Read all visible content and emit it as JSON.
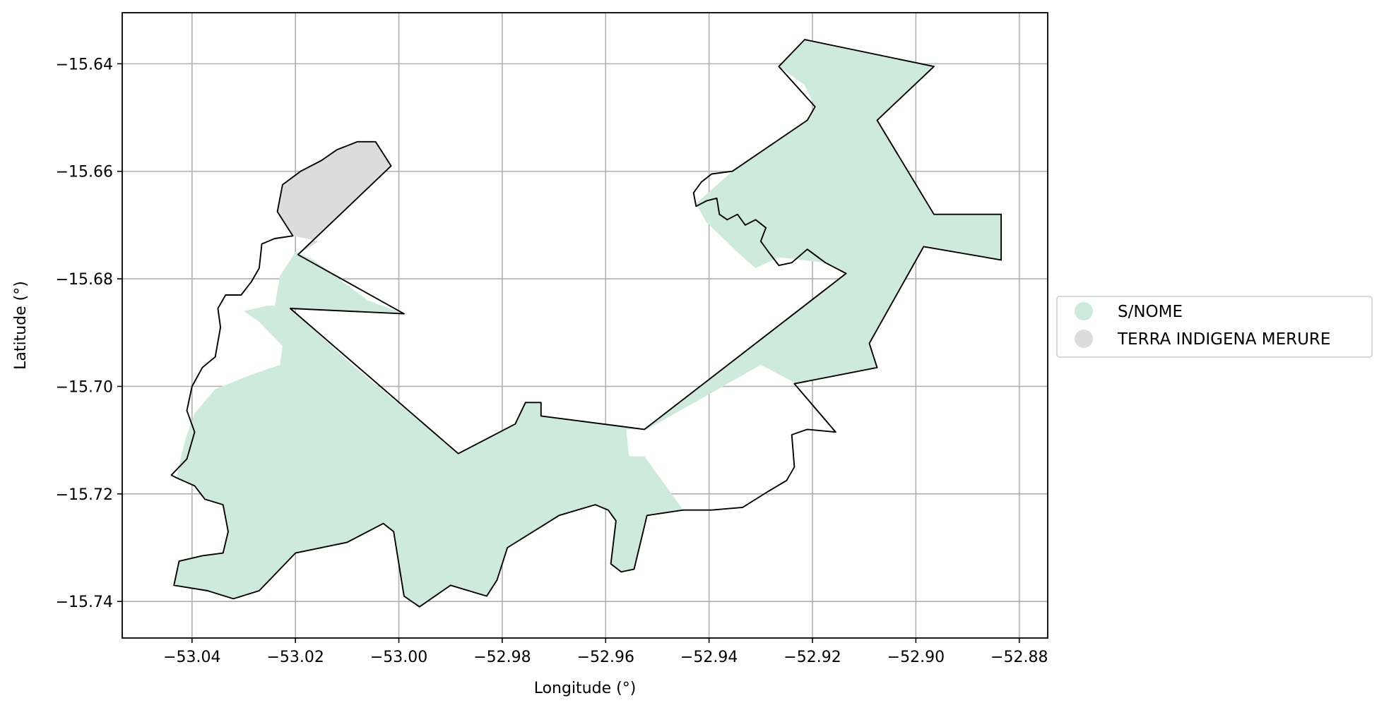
{
  "chart_data": {
    "type": "map",
    "xlabel": "Longitude (°)",
    "ylabel": "Latitude (°)",
    "xlim": [
      -53.0535,
      -52.8745
    ],
    "ylim": [
      -15.7468,
      -15.6305
    ],
    "xticks": [
      -53.04,
      -53.02,
      -53.0,
      -52.98,
      -52.96,
      -52.94,
      -52.92,
      -52.9,
      -52.88
    ],
    "yticks": [
      -15.64,
      -15.66,
      -15.68,
      -15.7,
      -15.72,
      -15.74
    ],
    "xtick_labels": [
      "−53.04",
      "−53.02",
      "−53.00",
      "−52.98",
      "−52.96",
      "−52.94",
      "−52.92",
      "−52.90",
      "−52.88"
    ],
    "ytick_labels": [
      "−15.64",
      "−15.66",
      "−15.68",
      "−15.70",
      "−15.72",
      "−15.74"
    ],
    "grid": true,
    "legend_placement": "right-center",
    "legend": [
      {
        "name": "S/NOME",
        "color": "#cdeadd"
      },
      {
        "name": "TERRA INDIGENA MERURE",
        "color": "#dcdcdc"
      }
    ],
    "regions": [
      {
        "name": "S/NOME",
        "color": "#cdeadd",
        "polygon": [
          [
            -52.9215,
            -15.6355
          ],
          [
            -52.8965,
            -15.6405
          ],
          [
            -52.9075,
            -15.6505
          ],
          [
            -52.8965,
            -15.668
          ],
          [
            -52.8835,
            -15.668
          ],
          [
            -52.8835,
            -15.6765
          ],
          [
            -52.8985,
            -15.674
          ],
          [
            -52.909,
            -15.692
          ],
          [
            -52.9075,
            -15.6965
          ],
          [
            -52.923,
            -15.6995
          ],
          [
            -52.93,
            -15.696
          ],
          [
            -52.952,
            -15.708
          ],
          [
            -52.956,
            -15.708
          ],
          [
            -52.9555,
            -15.713
          ],
          [
            -52.9525,
            -15.713
          ],
          [
            -52.945,
            -15.723
          ],
          [
            -52.952,
            -15.724
          ],
          [
            -52.953,
            -15.728
          ],
          [
            -52.9545,
            -15.734
          ],
          [
            -52.957,
            -15.7345
          ],
          [
            -52.959,
            -15.733
          ],
          [
            -52.958,
            -15.725
          ],
          [
            -52.9595,
            -15.723
          ],
          [
            -52.962,
            -15.722
          ],
          [
            -52.969,
            -15.724
          ],
          [
            -52.974,
            -15.727
          ],
          [
            -52.979,
            -15.73
          ],
          [
            -52.981,
            -15.736
          ],
          [
            -52.983,
            -15.739
          ],
          [
            -52.99,
            -15.737
          ],
          [
            -52.996,
            -15.741
          ],
          [
            -52.999,
            -15.739
          ],
          [
            -53.001,
            -15.727
          ],
          [
            -53.003,
            -15.7255
          ],
          [
            -53.01,
            -15.729
          ],
          [
            -53.02,
            -15.731
          ],
          [
            -53.027,
            -15.738
          ],
          [
            -53.032,
            -15.7395
          ],
          [
            -53.037,
            -15.738
          ],
          [
            -53.0435,
            -15.737
          ],
          [
            -53.0425,
            -15.7325
          ],
          [
            -53.038,
            -15.7315
          ],
          [
            -53.034,
            -15.731
          ],
          [
            -53.033,
            -15.727
          ],
          [
            -53.034,
            -15.722
          ],
          [
            -53.0375,
            -15.721
          ],
          [
            -53.0395,
            -15.7185
          ],
          [
            -53.043,
            -15.717
          ],
          [
            -53.042,
            -15.7125
          ],
          [
            -53.041,
            -15.709
          ],
          [
            -53.0395,
            -15.705
          ],
          [
            -53.0355,
            -15.7005
          ],
          [
            -53.029,
            -15.698
          ],
          [
            -53.023,
            -15.696
          ],
          [
            -53.0225,
            -15.6925
          ],
          [
            -53.027,
            -15.688
          ],
          [
            -53.03,
            -15.686
          ],
          [
            -53.0255,
            -15.685
          ],
          [
            -53.024,
            -15.685
          ],
          [
            -53.023,
            -15.6795
          ],
          [
            -53.02,
            -15.675
          ],
          [
            -53.0165,
            -15.6765
          ],
          [
            -53.006,
            -15.684
          ],
          [
            -52.999,
            -15.6865
          ],
          [
            -53.021,
            -15.6855
          ],
          [
            -53.009,
            -15.696
          ],
          [
            -52.9885,
            -15.7125
          ],
          [
            -52.9775,
            -15.707
          ],
          [
            -52.9755,
            -15.703
          ],
          [
            -52.9725,
            -15.703
          ],
          [
            -52.9725,
            -15.7055
          ],
          [
            -52.9525,
            -15.708
          ],
          [
            -52.9135,
            -15.679
          ],
          [
            -52.9175,
            -15.677
          ],
          [
            -52.9265,
            -15.676
          ],
          [
            -52.931,
            -15.678
          ],
          [
            -52.934,
            -15.6755
          ],
          [
            -52.9405,
            -15.6695
          ],
          [
            -52.9425,
            -15.666
          ],
          [
            -52.9355,
            -15.66
          ],
          [
            -52.921,
            -15.6505
          ],
          [
            -52.9195,
            -15.648
          ],
          [
            -52.9215,
            -15.644
          ],
          [
            -52.9265,
            -15.6405
          ],
          [
            -52.9215,
            -15.6355
          ]
        ]
      },
      {
        "name": "TERRA INDIGENA MERURE",
        "color": "#dcdcdc",
        "polygon": [
          [
            -53.019,
            -15.66
          ],
          [
            -53.015,
            -15.658
          ],
          [
            -53.012,
            -15.656
          ],
          [
            -53.008,
            -15.6545
          ],
          [
            -53.0045,
            -15.6545
          ],
          [
            -53.0015,
            -15.659
          ],
          [
            -53.0195,
            -15.6755
          ],
          [
            -53.0155,
            -15.673
          ],
          [
            -53.0205,
            -15.672
          ],
          [
            -53.0235,
            -15.6675
          ],
          [
            -53.0225,
            -15.6625
          ],
          [
            -53.019,
            -15.66
          ]
        ]
      }
    ],
    "outline_polygon": [
      [
        -52.9215,
        -15.6355
      ],
      [
        -52.8965,
        -15.6405
      ],
      [
        -52.9075,
        -15.6505
      ],
      [
        -52.8965,
        -15.668
      ],
      [
        -52.8835,
        -15.668
      ],
      [
        -52.8835,
        -15.6765
      ],
      [
        -52.8985,
        -15.674
      ],
      [
        -52.909,
        -15.692
      ],
      [
        -52.9075,
        -15.6965
      ],
      [
        -52.9235,
        -15.6995
      ],
      [
        -52.9155,
        -15.7085
      ],
      [
        -52.921,
        -15.708
      ],
      [
        -52.924,
        -15.709
      ],
      [
        -52.9235,
        -15.715
      ],
      [
        -52.925,
        -15.7175
      ],
      [
        -52.9285,
        -15.7195
      ],
      [
        -52.9335,
        -15.7225
      ],
      [
        -52.9395,
        -15.723
      ],
      [
        -52.945,
        -15.723
      ],
      [
        -52.952,
        -15.724
      ],
      [
        -52.953,
        -15.728
      ],
      [
        -52.9545,
        -15.734
      ],
      [
        -52.957,
        -15.7345
      ],
      [
        -52.959,
        -15.733
      ],
      [
        -52.958,
        -15.725
      ],
      [
        -52.9595,
        -15.723
      ],
      [
        -52.962,
        -15.722
      ],
      [
        -52.969,
        -15.724
      ],
      [
        -52.974,
        -15.727
      ],
      [
        -52.979,
        -15.73
      ],
      [
        -52.981,
        -15.736
      ],
      [
        -52.983,
        -15.739
      ],
      [
        -52.99,
        -15.737
      ],
      [
        -52.996,
        -15.741
      ],
      [
        -52.999,
        -15.739
      ],
      [
        -53.001,
        -15.727
      ],
      [
        -53.003,
        -15.7255
      ],
      [
        -53.01,
        -15.729
      ],
      [
        -53.02,
        -15.731
      ],
      [
        -53.027,
        -15.738
      ],
      [
        -53.032,
        -15.7395
      ],
      [
        -53.037,
        -15.738
      ],
      [
        -53.0435,
        -15.737
      ],
      [
        -53.0425,
        -15.7325
      ],
      [
        -53.038,
        -15.7315
      ],
      [
        -53.034,
        -15.731
      ],
      [
        -53.033,
        -15.727
      ],
      [
        -53.034,
        -15.722
      ],
      [
        -53.0375,
        -15.721
      ],
      [
        -53.0395,
        -15.7185
      ],
      [
        -53.043,
        -15.717
      ],
      [
        -53.044,
        -15.7165
      ],
      [
        -53.041,
        -15.7135
      ],
      [
        -53.0395,
        -15.7085
      ],
      [
        -53.041,
        -15.7045
      ],
      [
        -53.04,
        -15.7
      ],
      [
        -53.038,
        -15.6965
      ],
      [
        -53.0355,
        -15.6945
      ],
      [
        -53.0345,
        -15.689
      ],
      [
        -53.035,
        -15.6855
      ],
      [
        -53.0335,
        -15.683
      ],
      [
        -53.0305,
        -15.683
      ],
      [
        -53.0285,
        -15.6805
      ],
      [
        -53.027,
        -15.678
      ],
      [
        -53.0265,
        -15.6735
      ],
      [
        -53.024,
        -15.6725
      ],
      [
        -53.0205,
        -15.672
      ],
      [
        -53.0235,
        -15.6675
      ],
      [
        -53.0225,
        -15.6625
      ],
      [
        -53.019,
        -15.66
      ],
      [
        -53.015,
        -15.658
      ],
      [
        -53.012,
        -15.656
      ],
      [
        -53.008,
        -15.6545
      ],
      [
        -53.0045,
        -15.6545
      ],
      [
        -53.0015,
        -15.659
      ],
      [
        -53.0195,
        -15.6755
      ],
      [
        -52.999,
        -15.6865
      ],
      [
        -53.021,
        -15.6855
      ],
      [
        -52.9885,
        -15.7125
      ],
      [
        -52.9775,
        -15.707
      ],
      [
        -52.9755,
        -15.703
      ],
      [
        -52.9725,
        -15.703
      ],
      [
        -52.9725,
        -15.7055
      ],
      [
        -52.9525,
        -15.708
      ],
      [
        -52.9135,
        -15.679
      ],
      [
        -52.9175,
        -15.677
      ],
      [
        -52.921,
        -15.6745
      ],
      [
        -52.924,
        -15.677
      ],
      [
        -52.9265,
        -15.6775
      ],
      [
        -52.9285,
        -15.675
      ],
      [
        -52.93,
        -15.673
      ],
      [
        -52.929,
        -15.6705
      ],
      [
        -52.931,
        -15.669
      ],
      [
        -52.933,
        -15.67
      ],
      [
        -52.9345,
        -15.668
      ],
      [
        -52.9365,
        -15.669
      ],
      [
        -52.938,
        -15.668
      ],
      [
        -52.9385,
        -15.665
      ],
      [
        -52.9405,
        -15.6655
      ],
      [
        -52.9425,
        -15.6665
      ],
      [
        -52.943,
        -15.664
      ],
      [
        -52.9415,
        -15.662
      ],
      [
        -52.9395,
        -15.6605
      ],
      [
        -52.9355,
        -15.66
      ],
      [
        -52.921,
        -15.6505
      ],
      [
        -52.9195,
        -15.648
      ],
      [
        -52.9265,
        -15.6405
      ],
      [
        -52.9215,
        -15.6355
      ]
    ]
  }
}
